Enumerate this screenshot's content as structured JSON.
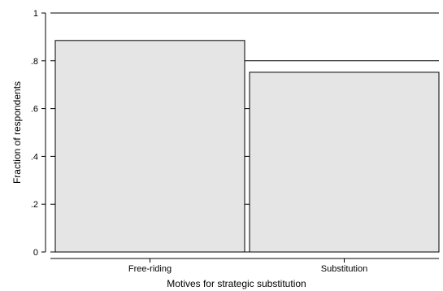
{
  "chart_data": {
    "type": "bar",
    "categories": [
      "Free-riding",
      "Substitution"
    ],
    "values": [
      0.885,
      0.752
    ],
    "xlabel": "Motives for strategic substitution",
    "ylabel": "Fraction of respondents",
    "ylim": [
      0,
      1
    ],
    "yticks": [
      0,
      0.2,
      0.4,
      0.6,
      0.8,
      1
    ],
    "yticklabels": [
      "0",
      ".2",
      ".4",
      ".6",
      ".8",
      "1"
    ],
    "grid": true,
    "colors": {
      "bar_fill": "#e5e5e5",
      "bar_stroke": "#000000",
      "grid": "#000000"
    }
  }
}
